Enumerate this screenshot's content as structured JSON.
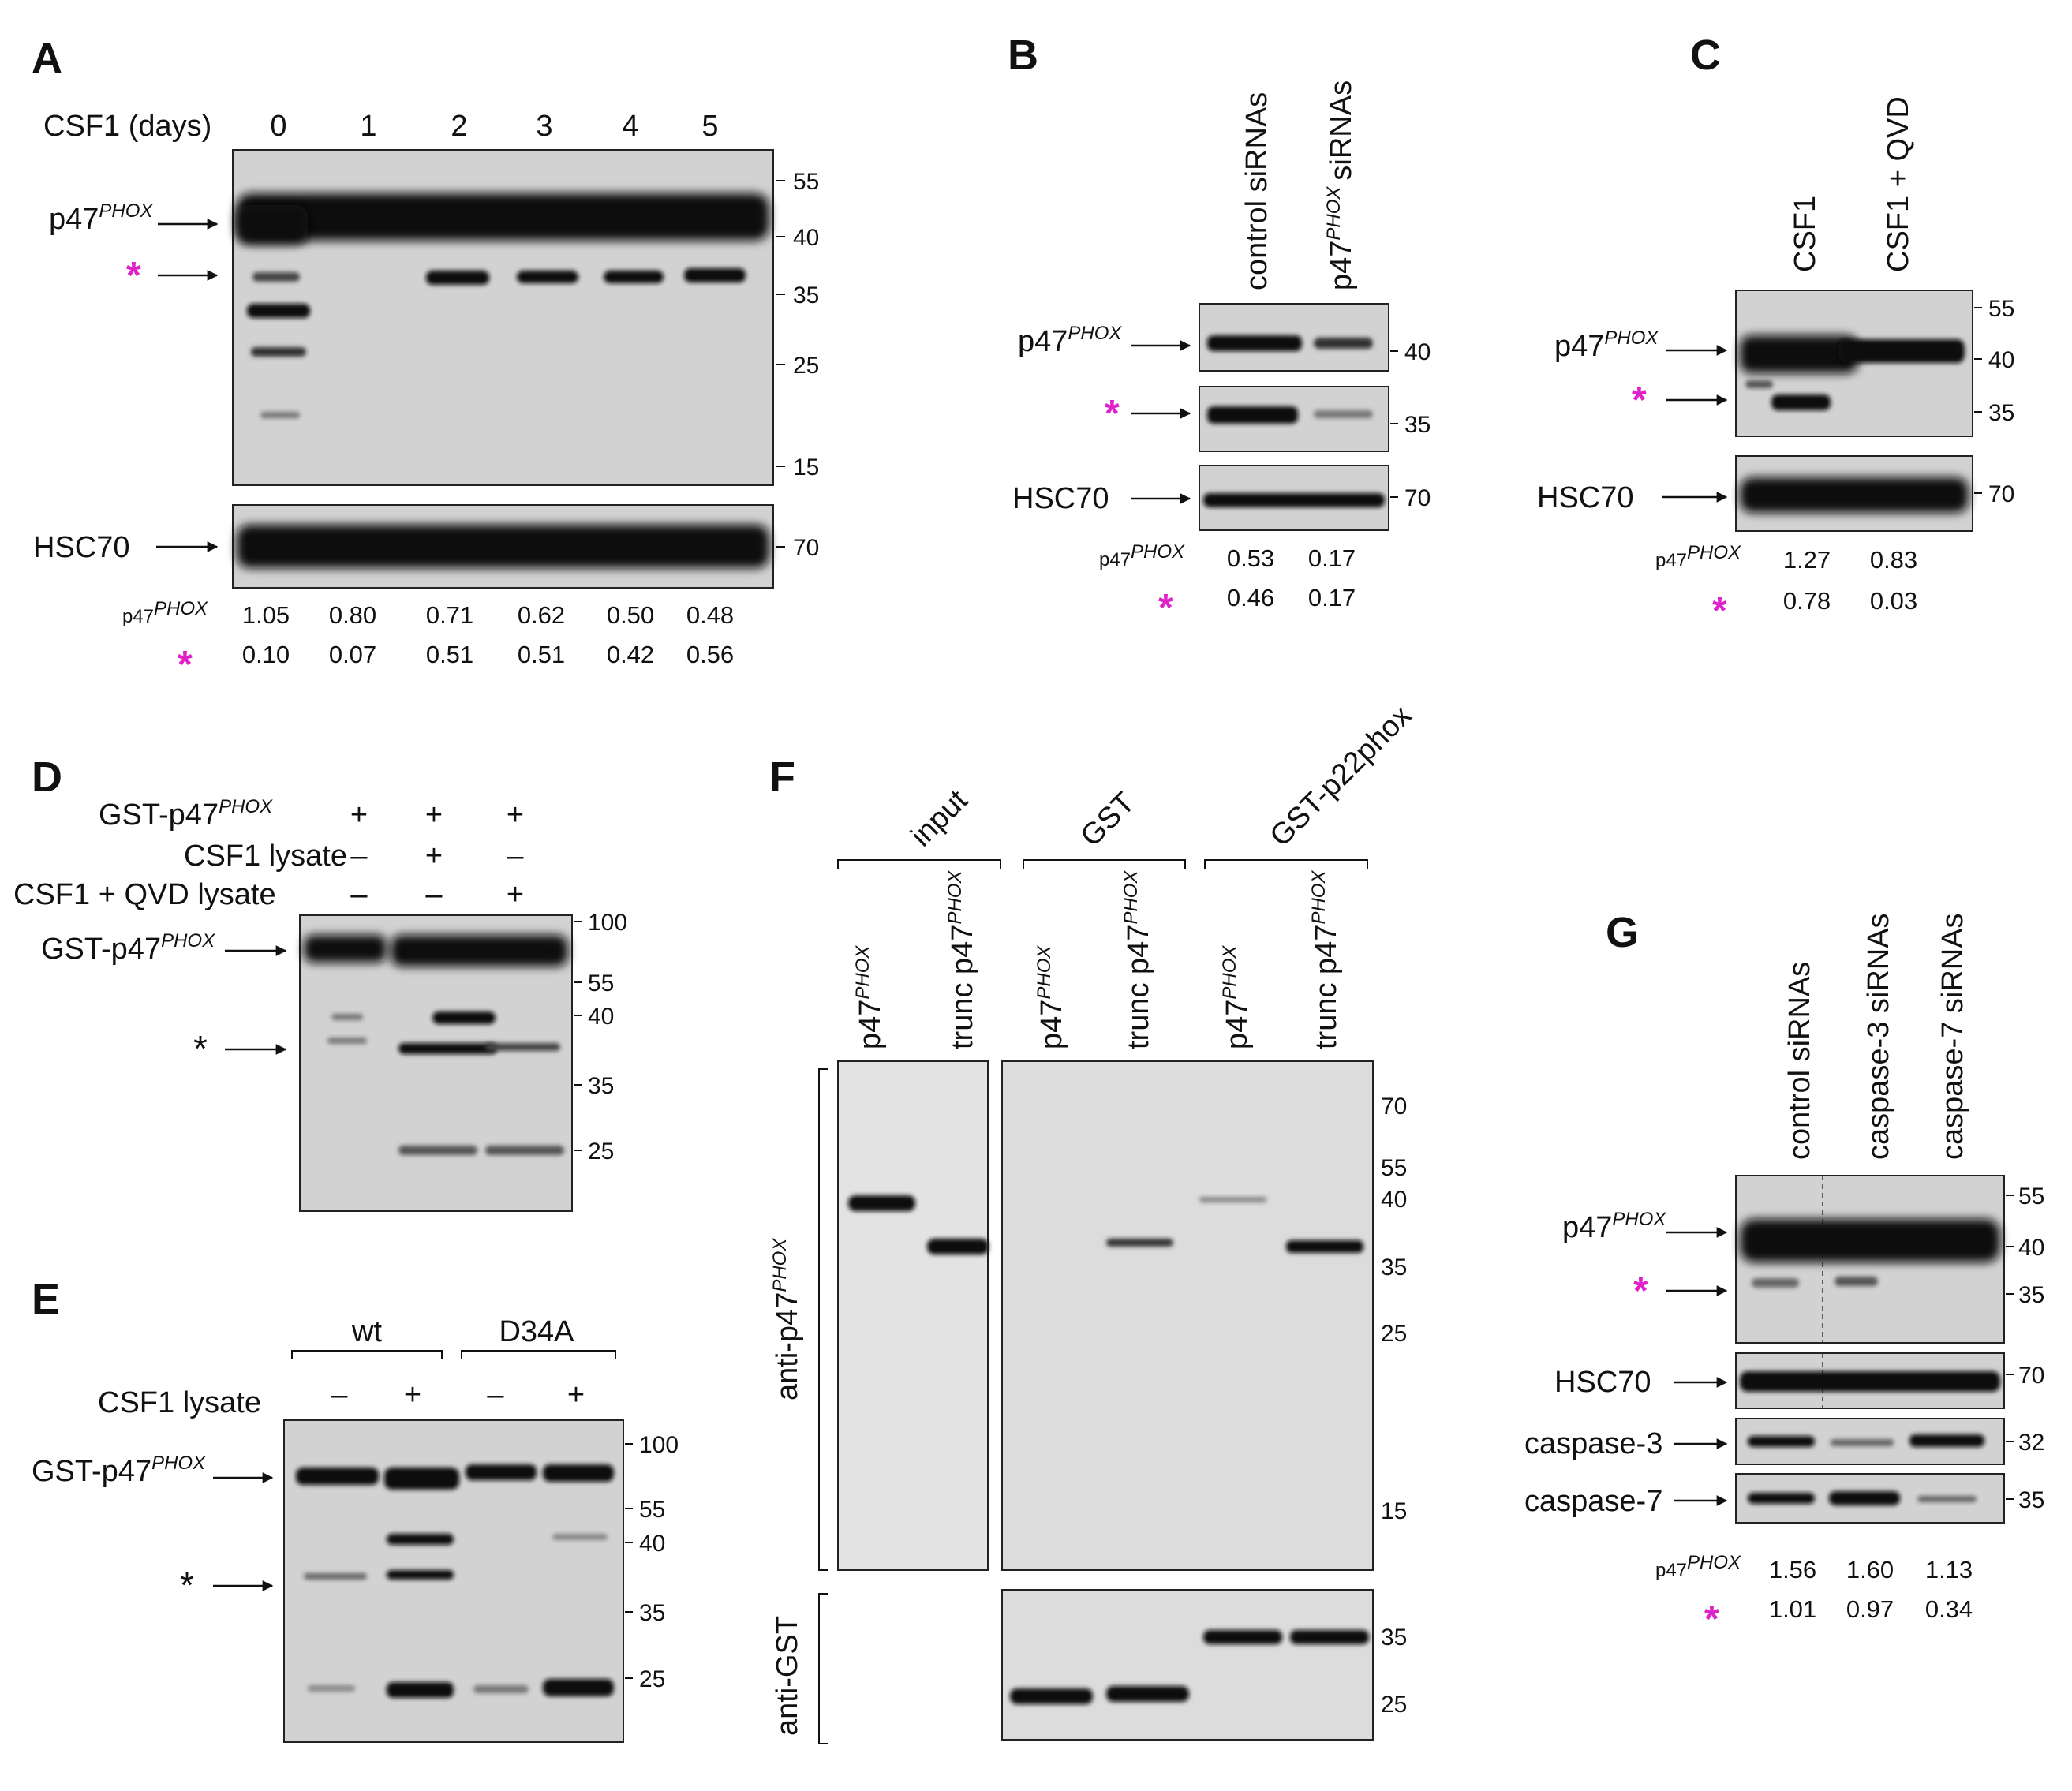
{
  "colors": {
    "star_accent": "#e020c8",
    "blot_background": "#d2d2d2",
    "band": "#0c0c0c"
  },
  "panel_letters": {
    "A": "A",
    "B": "B",
    "C": "C",
    "D": "D",
    "E": "E",
    "F": "F",
    "G": "G"
  },
  "common": {
    "p47": "p47",
    "phox": "PHOX",
    "hsc70": "HSC70",
    "star": "*",
    "black_star": "*",
    "plus": "+",
    "minus": "–"
  },
  "panelA": {
    "header": "CSF1 (days)",
    "lanes": [
      "0",
      "1",
      "2",
      "3",
      "4",
      "5"
    ],
    "markers_top": [
      "55",
      "40",
      "35",
      "25",
      "15"
    ],
    "markers_bottom": [
      "70"
    ],
    "quant_p47": [
      "1.05",
      "0.80",
      "0.71",
      "0.62",
      "0.50",
      "0.48"
    ],
    "quant_star": [
      "0.10",
      "0.07",
      "0.51",
      "0.51",
      "0.42",
      "0.56"
    ]
  },
  "panelB": {
    "lane1": "control siRNAs",
    "lane2_prefix": "p47",
    "lane2_suffix": "siRNAs",
    "markers": [
      "40",
      "35",
      "70"
    ],
    "quant_p47": [
      "0.53",
      "0.17"
    ],
    "quant_star": [
      "0.46",
      "0.17"
    ]
  },
  "panelC": {
    "lanes": [
      "CSF1",
      "CSF1 + QVD"
    ],
    "markers_top": [
      "55",
      "40",
      "35"
    ],
    "markers_bottom": [
      "70"
    ],
    "quant_p47": [
      "1.27",
      "0.83"
    ],
    "quant_star": [
      "0.78",
      "0.03"
    ]
  },
  "panelD": {
    "row1_prefix": "GST-p47",
    "row2": "CSF1 lysate",
    "row3": "CSF1 + QVD lysate",
    "band_label_prefix": "GST-p47",
    "markers": [
      "100",
      "55",
      "40",
      "35",
      "25"
    ]
  },
  "panelE": {
    "groups": [
      "wt",
      "D34A"
    ],
    "row": "CSF1 lysate",
    "band_label_prefix": "GST-p47",
    "markers": [
      "100",
      "55",
      "40",
      "35",
      "25"
    ]
  },
  "panelF": {
    "groups": [
      "input",
      "GST",
      "GST-p22phox"
    ],
    "lane_trunc": "trunc p47",
    "anti_p47": "anti-p47",
    "anti_gst": "anti-GST",
    "markers_top": [
      "70",
      "55",
      "40",
      "35",
      "25",
      "15"
    ],
    "markers_bottom": [
      "35",
      "25"
    ]
  },
  "panelG": {
    "lanes": [
      "control siRNAs",
      "caspase-3 siRNAs",
      "caspase-7 siRNAs"
    ],
    "row_labels": [
      "caspase-3",
      "caspase-7"
    ],
    "markers_top": [
      "55",
      "40",
      "35"
    ],
    "markers_hsc": [
      "70"
    ],
    "markers_c3": [
      "32"
    ],
    "markers_c7": [
      "35"
    ],
    "quant_p47": [
      "1.56",
      "1.60",
      "1.13"
    ],
    "quant_star": [
      "1.01",
      "0.97",
      "0.34"
    ]
  }
}
